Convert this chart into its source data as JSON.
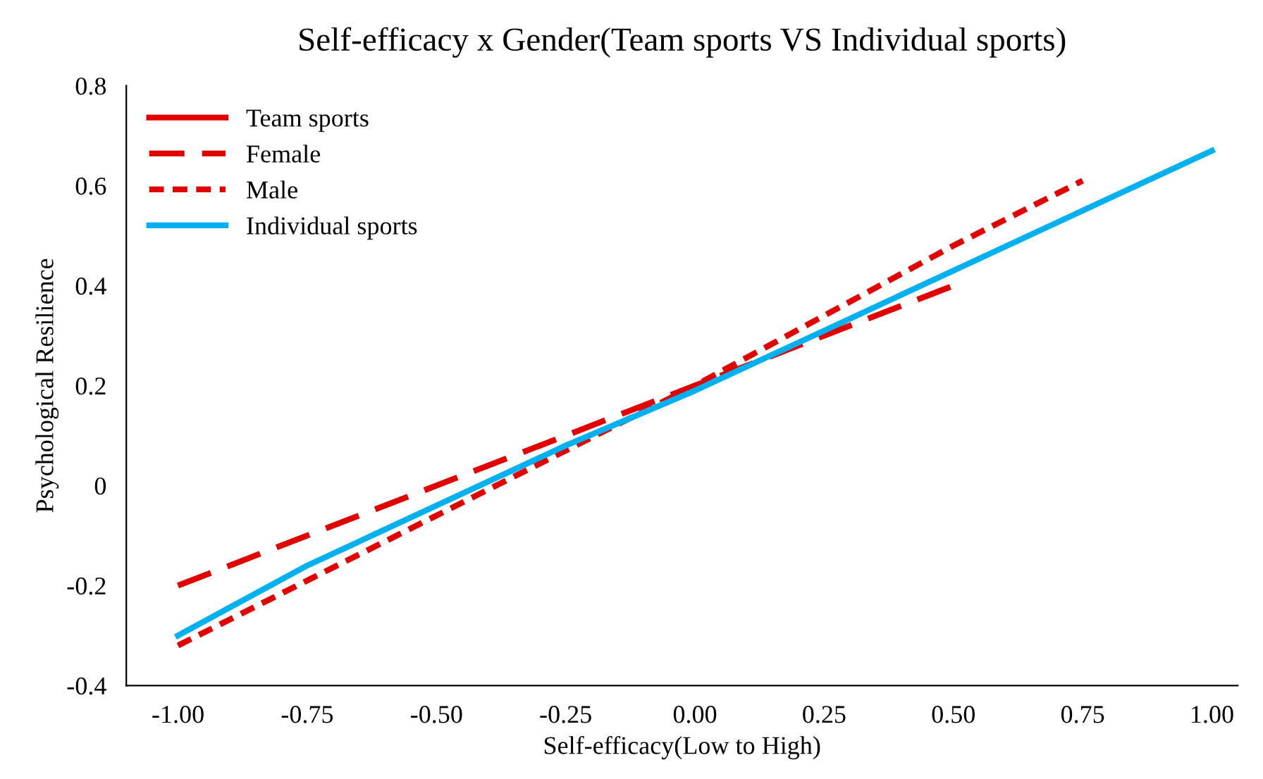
{
  "chart_data": {
    "type": "line",
    "title": "Self-efficacy x Gender(Team sports VS Individual sports)",
    "xlabel": "Self-efficacy(Low to High)",
    "ylabel": "Psychological Resilience",
    "xlim": [
      -1.1,
      1.05
    ],
    "ylim": [
      -0.4,
      0.8
    ],
    "xticks": [
      {
        "value": -1,
        "label": "-1.00"
      },
      {
        "value": -0.75,
        "label": "-0.75"
      },
      {
        "value": -0.5,
        "label": "-0.50"
      },
      {
        "value": -0.25,
        "label": "-0.25"
      },
      {
        "value": 0,
        "label": "0.00"
      },
      {
        "value": 0.25,
        "label": "0.25"
      },
      {
        "value": 0.5,
        "label": "0.50"
      },
      {
        "value": 0.75,
        "label": "0.75"
      },
      {
        "value": 1,
        "label": "1.00"
      }
    ],
    "yticks": [
      -0.4,
      -0.2,
      0,
      0.2,
      0.4,
      0.6,
      0.8
    ],
    "grid": false,
    "legend": "top left",
    "series": [
      {
        "name": "Team sports",
        "color": "#e00000",
        "line_style": "solid"
      },
      {
        "name": "Female",
        "color": "#e00000",
        "line_style": "dashed",
        "x": [
          -1,
          -0.75,
          -0.5,
          -0.25,
          0,
          0.25,
          0.5
        ],
        "values": [
          -0.2,
          -0.1,
          0.0,
          0.1,
          0.2,
          0.3,
          0.4
        ]
      },
      {
        "name": "Male",
        "color": "#e00000",
        "line_style": "dotted",
        "x": [
          -1,
          -0.75,
          -0.5,
          -0.25,
          0,
          0.25,
          0.5,
          0.75
        ],
        "values": [
          -0.32,
          -0.19,
          -0.06,
          0.07,
          0.2,
          0.34,
          0.48,
          0.61
        ]
      },
      {
        "name": "Individual sports",
        "color": "#00b0f0",
        "line_style": "solid",
        "x": [
          -1,
          -0.75,
          -0.5,
          -0.25,
          0,
          0.25,
          0.5,
          0.75,
          1
        ],
        "values": [
          -0.3,
          -0.16,
          -0.04,
          0.08,
          0.19,
          0.31,
          0.43,
          0.55,
          0.67
        ]
      }
    ]
  }
}
